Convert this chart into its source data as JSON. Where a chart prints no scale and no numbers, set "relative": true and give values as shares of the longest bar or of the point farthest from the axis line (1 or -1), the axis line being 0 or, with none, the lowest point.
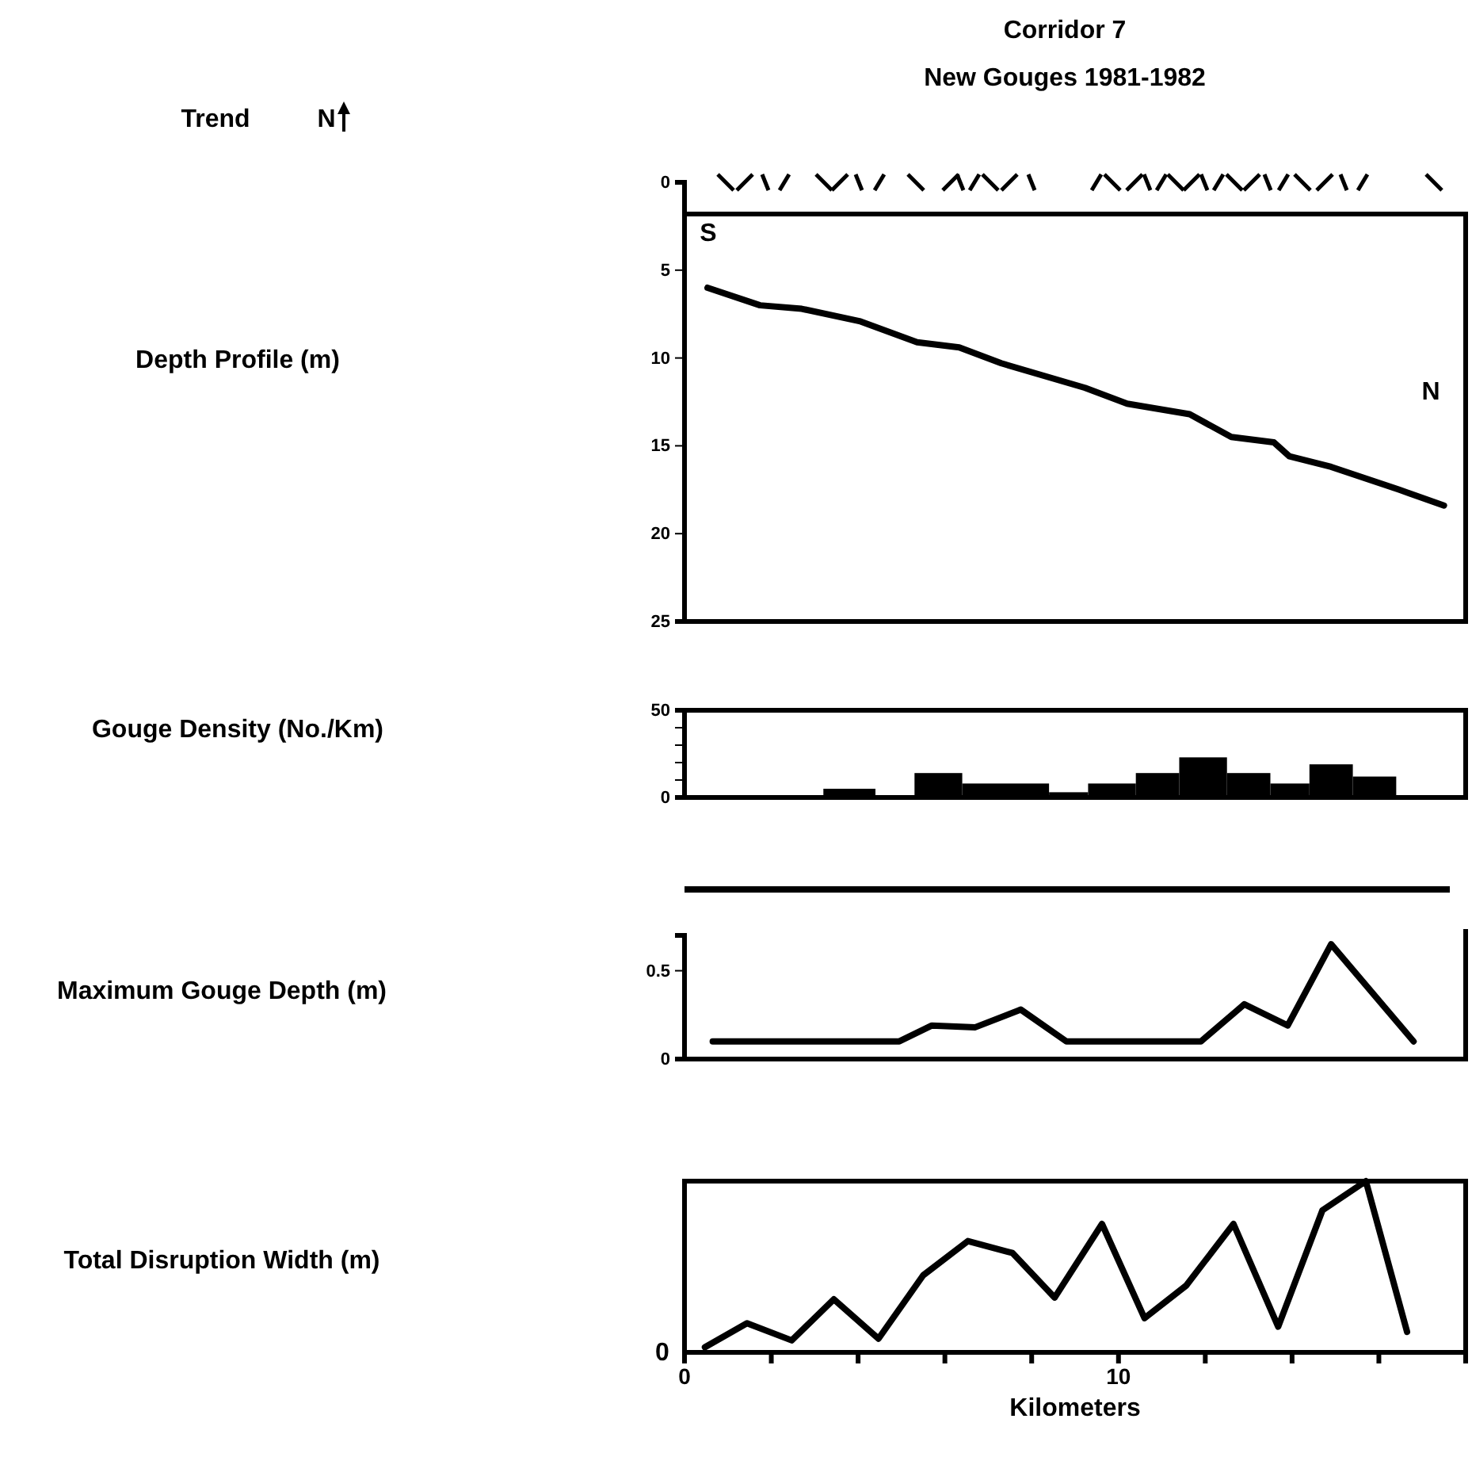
{
  "chart_data": [
    {
      "type": "line",
      "title": "Corridor 7",
      "subtitle": "New Gouges 1981-1982",
      "ylabel": "Depth Profile (m)",
      "annotations": [
        "Trend",
        "N",
        "S",
        "N"
      ],
      "x": [
        0.53,
        1.74,
        2.7,
        4.03,
        5.36,
        6.33,
        7.3,
        9.23,
        10.2,
        11.64,
        12.6,
        13.58,
        13.94,
        14.9,
        16.47,
        17.5
      ],
      "series": [
        {
          "color": "#000000",
          "values": [
            6.0,
            7.0,
            7.2,
            7.9,
            9.1,
            9.4,
            10.3,
            11.7,
            12.6,
            13.2,
            14.5,
            14.8,
            15.6,
            16.2,
            17.5,
            18.4
          ]
        }
      ],
      "xlim": [
        0,
        18
      ],
      "ylim": [
        25,
        0
      ],
      "yticks": [
        0,
        5,
        10,
        15,
        20,
        25
      ],
      "tick_labels": "y"
    },
    {
      "type": "histogram",
      "ylabel": "Gouge Density (No./Km)",
      "bins": [
        3.2,
        4.4,
        5.3,
        6.4,
        8.4,
        9.3,
        10.4,
        11.4,
        12.5,
        13.5,
        14.4,
        15.4,
        16.4
      ],
      "values": [
        5,
        1,
        14,
        8,
        3,
        8,
        14,
        23,
        14,
        8,
        19,
        12
      ],
      "color": "#000000",
      "xlim": [
        0,
        18
      ],
      "ylim": [
        0,
        50
      ],
      "yticks": [
        0,
        {
          "value": 10,
          "label": null
        },
        {
          "value": 20,
          "label": null
        },
        {
          "value": 30,
          "label": null
        },
        {
          "value": 40,
          "label": null
        },
        50
      ],
      "tick_labels": "y"
    },
    {
      "type": "line",
      "ylabel": "Maximum Gouge Depth (m)",
      "x": [
        0.65,
        4.95,
        5.7,
        6.7,
        7.75,
        8.8,
        11.9,
        12.9,
        13.9,
        14.9,
        16.8
      ],
      "series": [
        {
          "color": "#000000",
          "values": [
            0.1,
            0.1,
            0.19,
            0.18,
            0.28,
            0.1,
            0.1,
            0.31,
            0.19,
            0.65,
            0.1
          ]
        }
      ],
      "xlim": [
        0,
        18
      ],
      "ylim": [
        0,
        0.7
      ],
      "yticks": [
        0,
        0.5
      ],
      "tick_labels": "y"
    },
    {
      "type": "line",
      "ylabel": "Total Disruption Width (m)",
      "xlabel": "Kilometers",
      "annotations": [
        "0"
      ],
      "relative": true,
      "x": [
        0.47,
        1.44,
        2.47,
        3.44,
        4.47,
        5.5,
        6.53,
        7.56,
        8.53,
        9.62,
        10.6,
        11.56,
        12.65,
        13.68,
        14.7,
        15.7,
        16.65
      ],
      "series": [
        {
          "color": "#000000",
          "values": [
            0.03,
            0.17,
            0.07,
            0.31,
            0.08,
            0.45,
            0.65,
            0.58,
            0.32,
            0.75,
            0.2,
            0.39,
            0.75,
            0.15,
            0.83,
            1,
            0.12
          ]
        }
      ],
      "xlim": [
        0,
        18
      ],
      "xticks": [
        0,
        {
          "value": 2,
          "label": null
        },
        {
          "value": 4,
          "label": null
        },
        {
          "value": 6,
          "label": null
        },
        {
          "value": 8,
          "label": null
        },
        10,
        {
          "value": 12,
          "label": null
        },
        {
          "value": 14,
          "label": null
        },
        {
          "value": 16,
          "label": null
        },
        {
          "value": 18,
          "label": null
        }
      ]
    }
  ]
}
